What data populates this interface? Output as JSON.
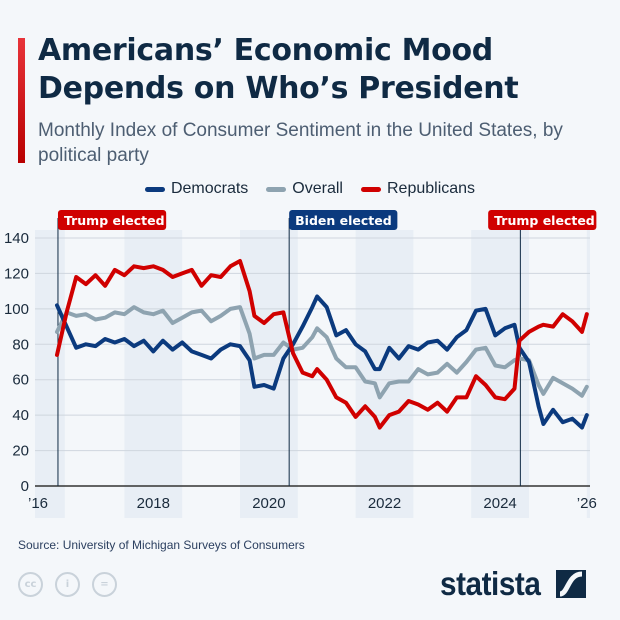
{
  "header": {
    "title": "Americans’ Economic Mood Depends on Who’s President",
    "subtitle": "Monthly Index of Consumer Sentiment in the United States, by political party"
  },
  "footer": {
    "source": "Source: University of Michigan Surveys of Consumers",
    "brand": "statista",
    "license_icons": [
      "cc-icon",
      "attribution-icon",
      "no-derivatives-icon"
    ]
  },
  "chart_data": {
    "type": "line",
    "title": "Americans’ Economic Mood Depends on Who’s President",
    "ylim": [
      0,
      140
    ],
    "yticks": [
      0,
      20,
      40,
      60,
      80,
      100,
      120,
      140
    ],
    "xticks": [
      {
        "date": "2016-01",
        "label": "’16"
      },
      {
        "date": "2018-07",
        "label": "2018"
      },
      {
        "date": "2020-07",
        "label": "2020"
      },
      {
        "date": "2022-07",
        "label": "2022"
      },
      {
        "date": "2024-07",
        "label": "2024"
      },
      {
        "date": "2026-01",
        "label": "’26"
      }
    ],
    "grid": true,
    "legend": "top-center",
    "x": [
      "2016-11",
      "2017-01",
      "2017-03",
      "2017-05",
      "2017-07",
      "2017-09",
      "2017-11",
      "2018-01",
      "2018-03",
      "2018-05",
      "2018-07",
      "2018-09",
      "2018-11",
      "2019-01",
      "2019-03",
      "2019-05",
      "2019-07",
      "2019-09",
      "2019-11",
      "2020-01",
      "2020-03",
      "2020-04",
      "2020-06",
      "2020-08",
      "2020-10",
      "2020-12",
      "2021-02",
      "2021-04",
      "2021-05",
      "2021-07",
      "2021-09",
      "2021-11",
      "2022-01",
      "2022-03",
      "2022-05",
      "2022-06",
      "2022-08",
      "2022-10",
      "2022-12",
      "2023-02",
      "2023-04",
      "2023-06",
      "2023-08",
      "2023-10",
      "2023-12",
      "2024-02",
      "2024-04",
      "2024-06",
      "2024-08",
      "2024-10",
      "2024-11",
      "2025-01",
      "2025-03",
      "2025-04",
      "2025-06",
      "2025-08",
      "2025-10",
      "2025-12",
      "2026-01"
    ],
    "series": [
      {
        "name": "Democrats",
        "color": "#0b3a7e",
        "values": [
          102,
          90,
          78,
          80,
          79,
          83,
          81,
          83,
          79,
          82,
          76,
          82,
          77,
          81,
          76,
          74,
          72,
          77,
          80,
          79,
          71,
          56,
          57,
          55,
          72,
          80,
          90,
          101,
          107,
          101,
          85,
          88,
          80,
          76,
          66,
          66,
          78,
          72,
          79,
          77,
          81,
          82,
          77,
          84,
          88,
          99,
          100,
          85,
          89,
          91,
          78,
          70,
          45,
          35,
          43,
          36,
          38,
          33,
          40
        ]
      },
      {
        "name": "Overall",
        "color": "#8ea3b0",
        "values": [
          87,
          98,
          96,
          97,
          94,
          95,
          98,
          97,
          101,
          98,
          97,
          99,
          92,
          95,
          98,
          99,
          93,
          96,
          100,
          101,
          86,
          72,
          74,
          74,
          81,
          77,
          78,
          84,
          89,
          84,
          72,
          67,
          67,
          59,
          58,
          50,
          58,
          59,
          59,
          66,
          63,
          64,
          69,
          64,
          70,
          77,
          78,
          68,
          67,
          71,
          72,
          71,
          57,
          52,
          61,
          58,
          55,
          51,
          56
        ]
      },
      {
        "name": "Republicans",
        "color": "#d00000",
        "values": [
          74,
          98,
          118,
          114,
          119,
          113,
          122,
          119,
          124,
          123,
          124,
          122,
          118,
          120,
          122,
          113,
          119,
          118,
          124,
          127,
          110,
          96,
          92,
          97,
          98,
          75,
          64,
          62,
          66,
          60,
          50,
          47,
          39,
          45,
          39,
          33,
          40,
          42,
          48,
          46,
          43,
          47,
          42,
          50,
          50,
          62,
          57,
          50,
          49,
          55,
          82,
          87,
          90,
          91,
          90,
          97,
          93,
          87,
          97
        ]
      }
    ],
    "annotations": [
      {
        "date": "2016-11",
        "label": "Trump elected",
        "color": "#d00000"
      },
      {
        "date": "2020-11",
        "label": "Biden elected",
        "color": "#0b3a7e"
      },
      {
        "date": "2024-11",
        "label": "Trump elected",
        "color": "#d00000"
      }
    ],
    "shaded_years": [
      "2016",
      "2018",
      "2020",
      "2022",
      "2024",
      "2026"
    ]
  }
}
